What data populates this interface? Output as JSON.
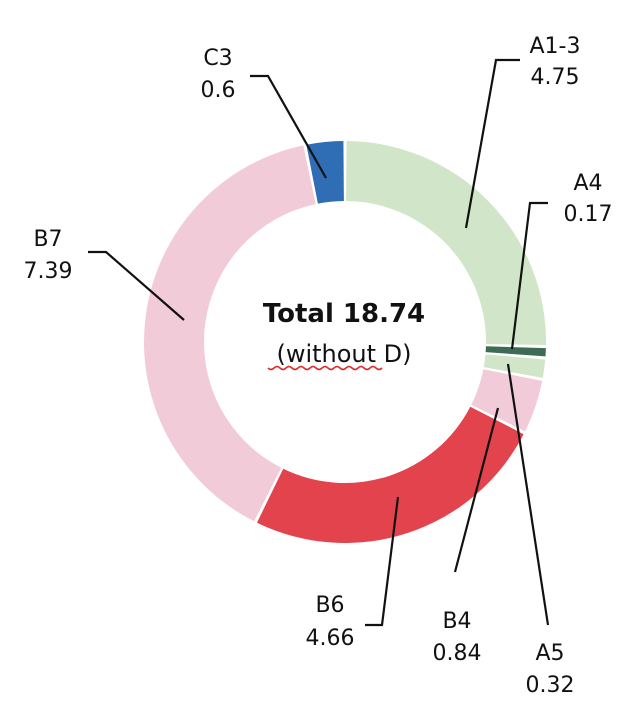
{
  "chart_data": {
    "type": "pie",
    "center_title": "Total 18.74",
    "center_subtitle": "(without D)",
    "slices": [
      {
        "label": "A1-3",
        "value": 4.75,
        "color": "#d1e5c8"
      },
      {
        "label": "A4",
        "value": 0.17,
        "color": "#3e6b55"
      },
      {
        "label": "A5",
        "value": 0.32,
        "color": "#d1e5c8"
      },
      {
        "label": "B4",
        "value": 0.84,
        "color": "#f2cbd8"
      },
      {
        "label": "B6",
        "value": 4.66,
        "color": "#e3434c"
      },
      {
        "label": "B7",
        "value": 7.39,
        "color": "#f2cbd8"
      },
      {
        "label": "C3",
        "value": 0.6,
        "color": "#2f6db5"
      }
    ]
  }
}
